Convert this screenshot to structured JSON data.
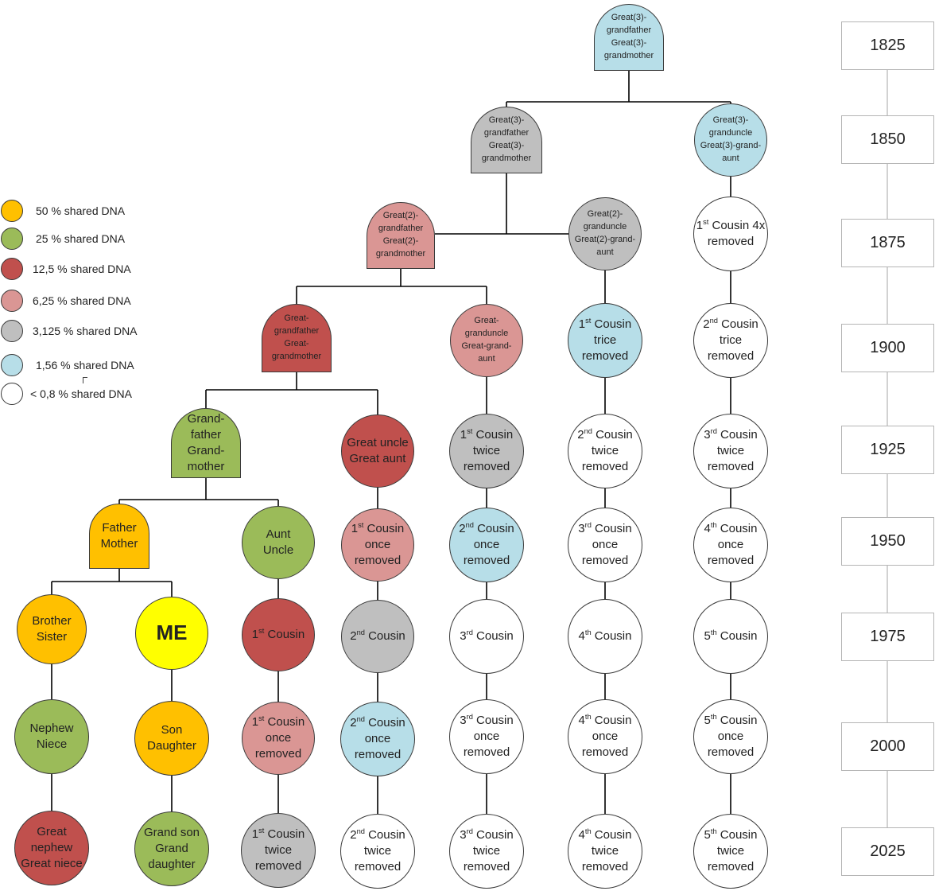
{
  "colors": {
    "orange": "#FFC000",
    "green": "#9BBB59",
    "red": "#C0504D",
    "pink": "#DA9694",
    "gray": "#BFBFBF",
    "blue": "#B7DEE8",
    "white": "#FFFFFF",
    "yellow": "#FFFF00",
    "line": "#000000",
    "timeline": "#B5B5B5"
  },
  "legend": [
    {
      "label": "50 % shared DNA",
      "color": "orange"
    },
    {
      "label": "25 % shared DNA",
      "color": "green"
    },
    {
      "label": "12,5 % shared DNA",
      "color": "red"
    },
    {
      "label": "6,25 % shared DNA",
      "color": "pink"
    },
    {
      "label": "3,125 % shared DNA",
      "color": "gray"
    },
    {
      "label": "1,56 % shared DNA",
      "color": "blue"
    },
    {
      "label": "< 0,8 % shared DNA",
      "color": "white"
    }
  ],
  "years": [
    "1825",
    "1850",
    "1875",
    "1900",
    "1925",
    "1950",
    "1975",
    "2000",
    "2025"
  ],
  "nodes": {
    "g3_top": {
      "lines": [
        "Great(3)-",
        "grandfather",
        "Great(3)-",
        "grandmother"
      ],
      "color": "blue"
    },
    "g3_gray": {
      "lines": [
        "Great(3)-",
        "grandfather",
        "Great(3)-",
        "grandmother"
      ],
      "color": "gray"
    },
    "g3_uncle": {
      "lines": [
        "Great(3)-",
        "granduncle",
        "Great(3)-grand-",
        "aunt"
      ],
      "color": "blue"
    },
    "g2_grandparents": {
      "lines": [
        "Great(2)-",
        "grandfather",
        "Great(2)-",
        "grandmother"
      ],
      "color": "pink"
    },
    "g2_uncle": {
      "lines": [
        "Great(2)-",
        "granduncle",
        "Great(2)-grand-",
        "aunt"
      ],
      "color": "gray"
    },
    "c1_4x": {
      "lines": [
        "1|st| Cousin 4x",
        "removed"
      ],
      "color": "white"
    },
    "great_grandparents": {
      "lines": [
        "Great-",
        "grandfather",
        "Great-",
        "grandmother"
      ],
      "color": "red"
    },
    "great_granduncle": {
      "lines": [
        "Great-",
        "granduncle",
        "Great-grand-",
        "aunt"
      ],
      "color": "pink"
    },
    "c1_trice": {
      "lines": [
        "1|st| Cousin",
        "trice",
        "removed"
      ],
      "color": "blue"
    },
    "c2_trice": {
      "lines": [
        "2|nd| Cousin",
        "trice",
        "removed"
      ],
      "color": "white"
    },
    "grandparents": {
      "lines": [
        "Grand-",
        "father",
        "Grand-",
        "mother"
      ],
      "color": "green"
    },
    "great_uncle": {
      "lines": [
        "Great uncle",
        "Great aunt"
      ],
      "color": "red"
    },
    "c1_twice_a": {
      "lines": [
        "1|st| Cousin",
        "twice",
        "removed"
      ],
      "color": "gray"
    },
    "c2_twice_a": {
      "lines": [
        "2|nd| Cousin",
        "twice",
        "removed"
      ],
      "color": "white"
    },
    "c3_twice_a": {
      "lines": [
        "3|rd| Cousin",
        "twice",
        "removed"
      ],
      "color": "white"
    },
    "parents": {
      "lines": [
        "Father",
        "Mother"
      ],
      "color": "orange"
    },
    "aunt_uncle": {
      "lines": [
        "Aunt",
        "Uncle"
      ],
      "color": "green"
    },
    "c1_once_a": {
      "lines": [
        "1|st| Cousin",
        "once",
        "removed"
      ],
      "color": "pink"
    },
    "c2_once_a": {
      "lines": [
        "2|nd| Cousin",
        "once",
        "removed"
      ],
      "color": "blue"
    },
    "c3_once_a": {
      "lines": [
        "3|rd| Cousin",
        "once",
        "removed"
      ],
      "color": "white"
    },
    "c4_once_a": {
      "lines": [
        "4|th| Cousin",
        "once",
        "removed"
      ],
      "color": "white"
    },
    "siblings": {
      "lines": [
        "Brother",
        "Sister"
      ],
      "color": "orange"
    },
    "me": {
      "lines": [
        "ME"
      ],
      "color": "yellow"
    },
    "c1": {
      "lines": [
        "1|st| Cousin"
      ],
      "color": "red"
    },
    "c2": {
      "lines": [
        "2|nd| Cousin"
      ],
      "color": "gray"
    },
    "c3": {
      "lines": [
        "3|rd| Cousin"
      ],
      "color": "white"
    },
    "c4": {
      "lines": [
        "4|th| Cousin"
      ],
      "color": "white"
    },
    "c5": {
      "lines": [
        "5|th| Cousin"
      ],
      "color": "white"
    },
    "nephew": {
      "lines": [
        "Nephew",
        "Niece"
      ],
      "color": "green"
    },
    "children": {
      "lines": [
        "Son",
        "Daughter"
      ],
      "color": "orange"
    },
    "c1_once_b": {
      "lines": [
        "1|st| Cousin",
        "once",
        "removed"
      ],
      "color": "pink"
    },
    "c2_once_b": {
      "lines": [
        "2|nd| Cousin",
        "once",
        "removed"
      ],
      "color": "blue"
    },
    "c3_once_b": {
      "lines": [
        "3|rd| Cousin",
        "once",
        "removed"
      ],
      "color": "white"
    },
    "c4_once_b": {
      "lines": [
        "4|th| Cousin",
        "once",
        "removed"
      ],
      "color": "white"
    },
    "c5_once_b": {
      "lines": [
        "5|th| Cousin",
        "once",
        "removed"
      ],
      "color": "white"
    },
    "great_nephew": {
      "lines": [
        "Great",
        "nephew",
        "Great niece"
      ],
      "color": "red"
    },
    "grandchildren": {
      "lines": [
        "Grand son",
        "Grand",
        "daughter"
      ],
      "color": "green"
    },
    "c1_twice_b": {
      "lines": [
        "1|st| Cousin",
        "twice",
        "removed"
      ],
      "color": "gray"
    },
    "c2_twice_b": {
      "lines": [
        "2|nd| Cousin",
        "twice",
        "removed"
      ],
      "color": "white"
    },
    "c3_twice_b": {
      "lines": [
        "3|rd| Cousin",
        "twice",
        "removed"
      ],
      "color": "white"
    },
    "c4_twice_b": {
      "lines": [
        "4|th| Cousin",
        "twice",
        "removed"
      ],
      "color": "white"
    },
    "c5_twice_b": {
      "lines": [
        "5|th| Cousin",
        "twice",
        "removed"
      ],
      "color": "white"
    }
  }
}
